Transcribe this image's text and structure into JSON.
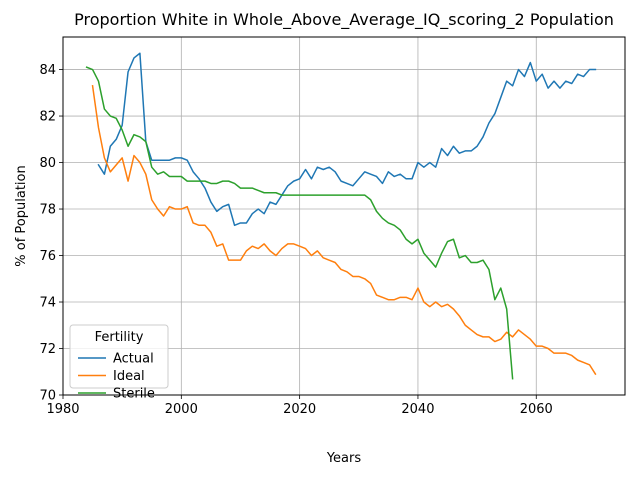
{
  "chart_data": {
    "type": "line",
    "title": "Proportion White in Whole_Above_Average_IQ_scoring_2 Population",
    "xlabel": "Years",
    "ylabel": "% of Population",
    "xlim": [
      1980,
      2075
    ],
    "ylim": [
      70,
      85.4
    ],
    "xticks": [
      1980,
      2000,
      2020,
      2040,
      2060
    ],
    "yticks": [
      70,
      72,
      74,
      76,
      78,
      80,
      82,
      84
    ],
    "grid": true,
    "legend": {
      "title": "Fertility",
      "placement": "lower-left"
    },
    "colors": {
      "Actual": "#1f77b4",
      "Ideal": "#ff7f0e",
      "Sterile": "#2ca02c",
      "grid": "#b0b0b0"
    },
    "series": [
      {
        "name": "Actual",
        "x": [
          1986,
          1987,
          1988,
          1989,
          1990,
          1991,
          1992,
          1993,
          1994,
          1995,
          1996,
          1997,
          1998,
          1999,
          2000,
          2001,
          2002,
          2003,
          2004,
          2005,
          2006,
          2007,
          2008,
          2009,
          2010,
          2011,
          2012,
          2013,
          2014,
          2015,
          2016,
          2017,
          2018,
          2019,
          2020,
          2021,
          2022,
          2023,
          2024,
          2025,
          2026,
          2027,
          2028,
          2029,
          2030,
          2031,
          2032,
          2033,
          2034,
          2035,
          2036,
          2037,
          2038,
          2039,
          2040,
          2041,
          2042,
          2043,
          2044,
          2045,
          2046,
          2047,
          2048,
          2049,
          2050,
          2051,
          2052,
          2053,
          2054,
          2055,
          2056,
          2057,
          2058,
          2059,
          2060,
          2061,
          2062,
          2063,
          2064,
          2065,
          2066,
          2067,
          2068,
          2069,
          2070
        ],
        "y": [
          79.9,
          79.5,
          80.7,
          81.0,
          81.6,
          83.9,
          84.5,
          84.7,
          80.9,
          80.1,
          80.1,
          80.1,
          80.1,
          80.2,
          80.2,
          80.1,
          79.6,
          79.3,
          78.9,
          78.3,
          77.9,
          78.1,
          78.2,
          77.3,
          77.4,
          77.4,
          77.8,
          78.0,
          77.8,
          78.3,
          78.2,
          78.6,
          79.0,
          79.2,
          79.3,
          79.7,
          79.3,
          79.8,
          79.7,
          79.8,
          79.6,
          79.2,
          79.1,
          79.0,
          79.3,
          79.6,
          79.5,
          79.4,
          79.1,
          79.6,
          79.4,
          79.5,
          79.3,
          79.3,
          80.0,
          79.8,
          80.0,
          79.8,
          80.6,
          80.3,
          80.7,
          80.4,
          80.5,
          80.5,
          80.7,
          81.1,
          81.7,
          82.1,
          82.8,
          83.5,
          83.3,
          84.0,
          83.7,
          84.3,
          83.5,
          83.8,
          83.2,
          83.5,
          83.2,
          83.5,
          83.4,
          83.8,
          83.7,
          84.0,
          84.0
        ]
      },
      {
        "name": "Ideal",
        "x": [
          1985,
          1986,
          1987,
          1988,
          1989,
          1990,
          1991,
          1992,
          1993,
          1994,
          1995,
          1996,
          1997,
          1998,
          1999,
          2000,
          2001,
          2002,
          2003,
          2004,
          2005,
          2006,
          2007,
          2008,
          2009,
          2010,
          2011,
          2012,
          2013,
          2014,
          2015,
          2016,
          2017,
          2018,
          2019,
          2020,
          2021,
          2022,
          2023,
          2024,
          2025,
          2026,
          2027,
          2028,
          2029,
          2030,
          2031,
          2032,
          2033,
          2034,
          2035,
          2036,
          2037,
          2038,
          2039,
          2040,
          2041,
          2042,
          2043,
          2044,
          2045,
          2046,
          2047,
          2048,
          2049,
          2050,
          2051,
          2052,
          2053,
          2054,
          2055,
          2056,
          2057,
          2058,
          2059,
          2060,
          2061,
          2062,
          2063,
          2064,
          2065,
          2066,
          2067,
          2068,
          2069,
          2070
        ],
        "y": [
          83.3,
          81.5,
          80.2,
          79.6,
          79.9,
          80.2,
          79.2,
          80.3,
          80.0,
          79.5,
          78.4,
          78.0,
          77.7,
          78.1,
          78.0,
          78.0,
          78.1,
          77.4,
          77.3,
          77.3,
          77.0,
          76.4,
          76.5,
          75.8,
          75.8,
          75.8,
          76.2,
          76.4,
          76.3,
          76.5,
          76.2,
          76.0,
          76.3,
          76.5,
          76.5,
          76.4,
          76.3,
          76.0,
          76.2,
          75.9,
          75.8,
          75.7,
          75.4,
          75.3,
          75.1,
          75.1,
          75.0,
          74.8,
          74.3,
          74.2,
          74.1,
          74.1,
          74.2,
          74.2,
          74.1,
          74.6,
          74.0,
          73.8,
          74.0,
          73.8,
          73.9,
          73.7,
          73.4,
          73.0,
          72.8,
          72.6,
          72.5,
          72.5,
          72.3,
          72.4,
          72.7,
          72.5,
          72.8,
          72.6,
          72.4,
          72.1,
          72.1,
          72.0,
          71.8,
          71.8,
          71.8,
          71.7,
          71.5,
          71.4,
          71.3,
          70.9
        ]
      },
      {
        "name": "Sterile",
        "x": [
          1984,
          1985,
          1986,
          1987,
          1988,
          1989,
          1990,
          1991,
          1992,
          1993,
          1994,
          1995,
          1996,
          1997,
          1998,
          1999,
          2000,
          2001,
          2002,
          2003,
          2004,
          2005,
          2006,
          2007,
          2008,
          2009,
          2010,
          2011,
          2012,
          2013,
          2014,
          2015,
          2016,
          2017,
          2018,
          2019,
          2020,
          2021,
          2022,
          2023,
          2024,
          2025,
          2026,
          2027,
          2028,
          2029,
          2030,
          2031,
          2032,
          2033,
          2034,
          2035,
          2036,
          2037,
          2038,
          2039,
          2040,
          2041,
          2042,
          2043,
          2044,
          2045,
          2046,
          2047,
          2048,
          2049,
          2050,
          2051,
          2052,
          2053,
          2054,
          2055,
          2056
        ],
        "y": [
          84.1,
          84.0,
          83.5,
          82.3,
          82.0,
          81.9,
          81.4,
          80.7,
          81.2,
          81.1,
          80.9,
          79.8,
          79.5,
          79.6,
          79.4,
          79.4,
          79.4,
          79.2,
          79.2,
          79.2,
          79.2,
          79.1,
          79.1,
          79.2,
          79.2,
          79.1,
          78.9,
          78.9,
          78.9,
          78.8,
          78.7,
          78.7,
          78.7,
          78.6,
          78.6,
          78.6,
          78.6,
          78.6,
          78.6,
          78.6,
          78.6,
          78.6,
          78.6,
          78.6,
          78.6,
          78.6,
          78.6,
          78.6,
          78.4,
          77.9,
          77.6,
          77.4,
          77.3,
          77.1,
          76.7,
          76.5,
          76.7,
          76.1,
          75.8,
          75.5,
          76.1,
          76.6,
          76.7,
          75.9,
          76.0,
          75.7,
          75.7,
          75.8,
          75.4,
          74.1,
          74.6,
          73.7,
          70.7
        ]
      }
    ]
  }
}
